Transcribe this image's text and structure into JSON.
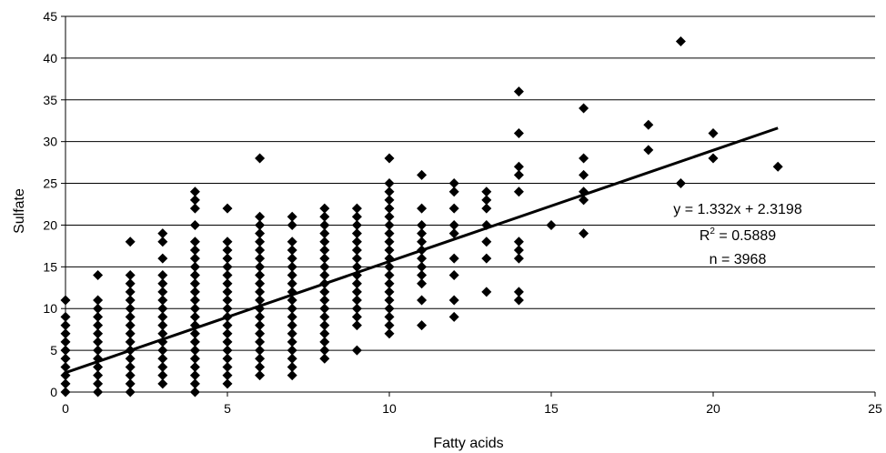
{
  "chart_data": {
    "type": "scatter",
    "title": "",
    "xlabel": "Fatty acids",
    "ylabel": "Sulfate",
    "xlim": [
      0,
      25
    ],
    "ylim": [
      0,
      45
    ],
    "x_ticks": [
      0,
      5,
      10,
      15,
      20,
      25
    ],
    "y_ticks": [
      0,
      5,
      10,
      15,
      20,
      25,
      30,
      35,
      40,
      45
    ],
    "grid": "horizontal",
    "legend": "none",
    "marker": "diamond",
    "marker_color": "#000000",
    "points": [
      [
        0,
        0
      ],
      [
        0,
        1
      ],
      [
        0,
        2
      ],
      [
        0,
        3
      ],
      [
        0,
        4
      ],
      [
        0,
        5
      ],
      [
        0,
        6
      ],
      [
        0,
        7
      ],
      [
        0,
        8
      ],
      [
        0,
        9
      ],
      [
        0,
        11
      ],
      [
        1,
        0
      ],
      [
        1,
        1
      ],
      [
        1,
        2
      ],
      [
        1,
        3
      ],
      [
        1,
        4
      ],
      [
        1,
        5
      ],
      [
        1,
        6
      ],
      [
        1,
        7
      ],
      [
        1,
        8
      ],
      [
        1,
        9
      ],
      [
        1,
        10
      ],
      [
        1,
        11
      ],
      [
        1,
        14
      ],
      [
        2,
        0
      ],
      [
        2,
        1
      ],
      [
        2,
        2
      ],
      [
        2,
        3
      ],
      [
        2,
        4
      ],
      [
        2,
        5
      ],
      [
        2,
        6
      ],
      [
        2,
        7
      ],
      [
        2,
        8
      ],
      [
        2,
        9
      ],
      [
        2,
        10
      ],
      [
        2,
        11
      ],
      [
        2,
        12
      ],
      [
        2,
        13
      ],
      [
        2,
        14
      ],
      [
        2,
        18
      ],
      [
        3,
        1
      ],
      [
        3,
        2
      ],
      [
        3,
        3
      ],
      [
        3,
        4
      ],
      [
        3,
        5
      ],
      [
        3,
        6
      ],
      [
        3,
        7
      ],
      [
        3,
        8
      ],
      [
        3,
        9
      ],
      [
        3,
        10
      ],
      [
        3,
        11
      ],
      [
        3,
        12
      ],
      [
        3,
        13
      ],
      [
        3,
        14
      ],
      [
        3,
        16
      ],
      [
        3,
        18
      ],
      [
        3,
        19
      ],
      [
        4,
        0
      ],
      [
        4,
        1
      ],
      [
        4,
        2
      ],
      [
        4,
        3
      ],
      [
        4,
        4
      ],
      [
        4,
        5
      ],
      [
        4,
        6
      ],
      [
        4,
        7
      ],
      [
        4,
        8
      ],
      [
        4,
        9
      ],
      [
        4,
        10
      ],
      [
        4,
        11
      ],
      [
        4,
        12
      ],
      [
        4,
        13
      ],
      [
        4,
        14
      ],
      [
        4,
        15
      ],
      [
        4,
        16
      ],
      [
        4,
        17
      ],
      [
        4,
        18
      ],
      [
        4,
        20
      ],
      [
        4,
        22
      ],
      [
        4,
        23
      ],
      [
        4,
        24
      ],
      [
        5,
        1
      ],
      [
        5,
        2
      ],
      [
        5,
        3
      ],
      [
        5,
        4
      ],
      [
        5,
        5
      ],
      [
        5,
        6
      ],
      [
        5,
        7
      ],
      [
        5,
        8
      ],
      [
        5,
        9
      ],
      [
        5,
        10
      ],
      [
        5,
        11
      ],
      [
        5,
        12
      ],
      [
        5,
        13
      ],
      [
        5,
        14
      ],
      [
        5,
        15
      ],
      [
        5,
        16
      ],
      [
        5,
        17
      ],
      [
        5,
        18
      ],
      [
        5,
        22
      ],
      [
        6,
        2
      ],
      [
        6,
        3
      ],
      [
        6,
        4
      ],
      [
        6,
        5
      ],
      [
        6,
        6
      ],
      [
        6,
        7
      ],
      [
        6,
        8
      ],
      [
        6,
        9
      ],
      [
        6,
        10
      ],
      [
        6,
        11
      ],
      [
        6,
        12
      ],
      [
        6,
        13
      ],
      [
        6,
        14
      ],
      [
        6,
        15
      ],
      [
        6,
        16
      ],
      [
        6,
        17
      ],
      [
        6,
        18
      ],
      [
        6,
        19
      ],
      [
        6,
        20
      ],
      [
        6,
        21
      ],
      [
        6,
        28
      ],
      [
        7,
        2
      ],
      [
        7,
        3
      ],
      [
        7,
        4
      ],
      [
        7,
        5
      ],
      [
        7,
        6
      ],
      [
        7,
        7
      ],
      [
        7,
        8
      ],
      [
        7,
        9
      ],
      [
        7,
        10
      ],
      [
        7,
        11
      ],
      [
        7,
        12
      ],
      [
        7,
        13
      ],
      [
        7,
        14
      ],
      [
        7,
        15
      ],
      [
        7,
        16
      ],
      [
        7,
        17
      ],
      [
        7,
        18
      ],
      [
        7,
        20
      ],
      [
        7,
        21
      ],
      [
        8,
        4
      ],
      [
        8,
        5
      ],
      [
        8,
        6
      ],
      [
        8,
        7
      ],
      [
        8,
        8
      ],
      [
        8,
        9
      ],
      [
        8,
        10
      ],
      [
        8,
        11
      ],
      [
        8,
        12
      ],
      [
        8,
        13
      ],
      [
        8,
        14
      ],
      [
        8,
        15
      ],
      [
        8,
        16
      ],
      [
        8,
        17
      ],
      [
        8,
        18
      ],
      [
        8,
        19
      ],
      [
        8,
        20
      ],
      [
        8,
        21
      ],
      [
        8,
        22
      ],
      [
        9,
        5
      ],
      [
        9,
        8
      ],
      [
        9,
        9
      ],
      [
        9,
        10
      ],
      [
        9,
        11
      ],
      [
        9,
        12
      ],
      [
        9,
        13
      ],
      [
        9,
        14
      ],
      [
        9,
        15
      ],
      [
        9,
        16
      ],
      [
        9,
        17
      ],
      [
        9,
        18
      ],
      [
        9,
        19
      ],
      [
        9,
        20
      ],
      [
        9,
        21
      ],
      [
        9,
        22
      ],
      [
        10,
        7
      ],
      [
        10,
        8
      ],
      [
        10,
        9
      ],
      [
        10,
        10
      ],
      [
        10,
        11
      ],
      [
        10,
        12
      ],
      [
        10,
        13
      ],
      [
        10,
        14
      ],
      [
        10,
        15
      ],
      [
        10,
        16
      ],
      [
        10,
        17
      ],
      [
        10,
        18
      ],
      [
        10,
        19
      ],
      [
        10,
        20
      ],
      [
        10,
        21
      ],
      [
        10,
        22
      ],
      [
        10,
        23
      ],
      [
        10,
        24
      ],
      [
        10,
        25
      ],
      [
        10,
        28
      ],
      [
        11,
        8
      ],
      [
        11,
        11
      ],
      [
        11,
        13
      ],
      [
        11,
        14
      ],
      [
        11,
        15
      ],
      [
        11,
        16
      ],
      [
        11,
        17
      ],
      [
        11,
        18
      ],
      [
        11,
        19
      ],
      [
        11,
        20
      ],
      [
        11,
        22
      ],
      [
        11,
        26
      ],
      [
        12,
        9
      ],
      [
        12,
        11
      ],
      [
        12,
        14
      ],
      [
        12,
        16
      ],
      [
        12,
        19
      ],
      [
        12,
        20
      ],
      [
        12,
        22
      ],
      [
        12,
        24
      ],
      [
        12,
        25
      ],
      [
        13,
        12
      ],
      [
        13,
        16
      ],
      [
        13,
        18
      ],
      [
        13,
        20
      ],
      [
        13,
        22
      ],
      [
        13,
        23
      ],
      [
        13,
        24
      ],
      [
        14,
        11
      ],
      [
        14,
        12
      ],
      [
        14,
        16
      ],
      [
        14,
        17
      ],
      [
        14,
        18
      ],
      [
        14,
        24
      ],
      [
        14,
        26
      ],
      [
        14,
        27
      ],
      [
        14,
        31
      ],
      [
        14,
        36
      ],
      [
        15,
        20
      ],
      [
        16,
        19
      ],
      [
        16,
        23
      ],
      [
        16,
        24
      ],
      [
        16,
        26
      ],
      [
        16,
        28
      ],
      [
        16,
        34
      ],
      [
        18,
        29
      ],
      [
        18,
        32
      ],
      [
        19,
        25
      ],
      [
        19,
        42
      ],
      [
        20,
        28
      ],
      [
        20,
        31
      ],
      [
        22,
        27
      ]
    ],
    "trendline": {
      "slope": 1.332,
      "intercept": 2.3198,
      "x_range": [
        0,
        22
      ]
    },
    "annotations": {
      "equation": "y = 1.332x + 2.3198",
      "r_squared_prefix": "R",
      "r_squared_sup": "2",
      "r_squared_suffix": " = 0.5889",
      "n_label": "n = 3968"
    }
  }
}
